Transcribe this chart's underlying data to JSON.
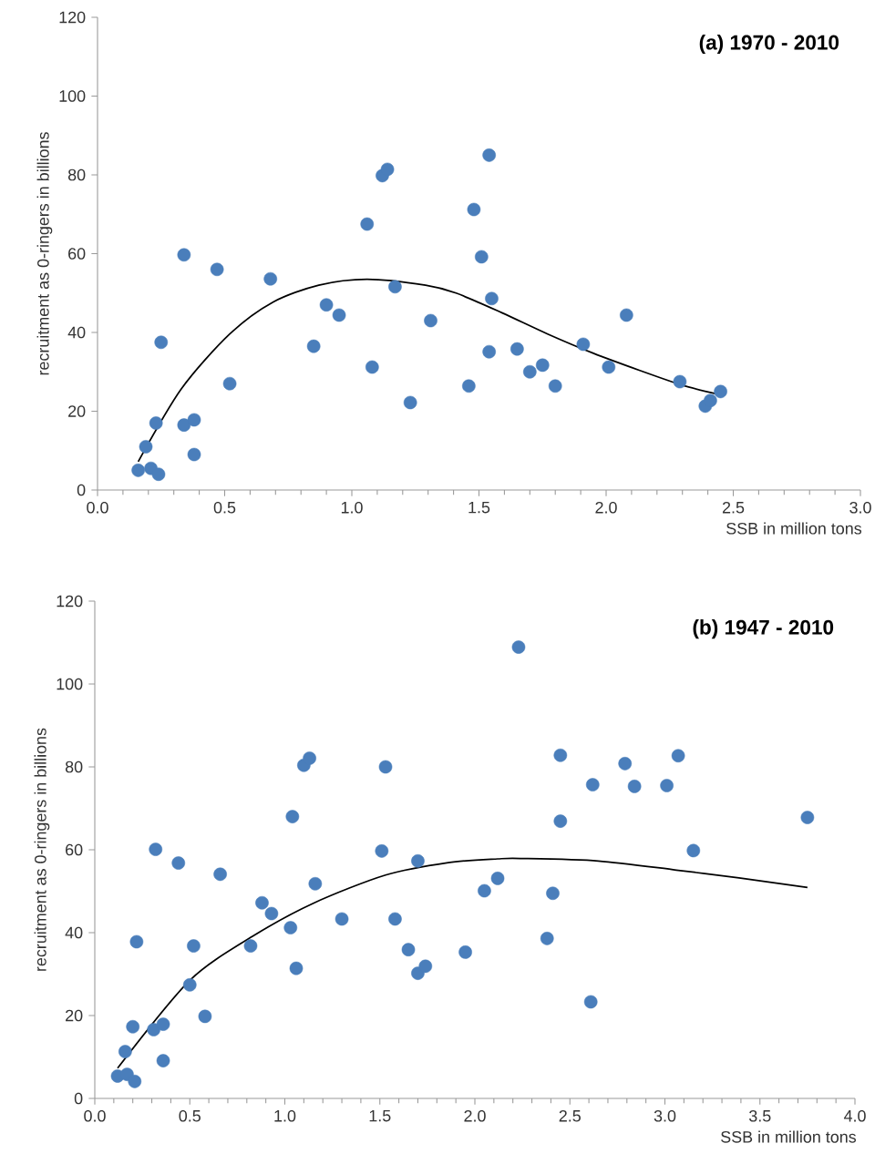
{
  "chart_data": [
    {
      "type": "scatter",
      "title": "(a) 1970 - 2010",
      "xlabel": "SSB in million tons",
      "ylabel": "recruitment as 0-ringers in billions",
      "xlim": [
        0,
        3.0
      ],
      "ylim": [
        0,
        120
      ],
      "xticks": [
        {
          "value": 0,
          "label": "0.0"
        },
        {
          "value": 0.5,
          "label": "0.5"
        },
        {
          "value": 1,
          "label": "1.0"
        },
        {
          "value": 1.5,
          "label": "1.5"
        },
        {
          "value": 2,
          "label": "2.0"
        },
        {
          "value": 2.5,
          "label": "2.5"
        },
        {
          "value": 3,
          "label": "3.0"
        }
      ],
      "yticks": [
        0,
        20,
        40,
        60,
        80,
        100,
        120
      ],
      "series": [
        {
          "color": "#4a7ebb",
          "marker": "circle",
          "x": [
            0.16,
            0.21,
            0.24,
            0.19,
            0.23,
            0.25,
            0.34,
            0.38,
            0.38,
            0.34,
            0.47,
            0.52,
            0.68,
            0.85,
            0.9,
            0.95,
            1.06,
            1.12,
            1.14,
            1.08,
            1.17,
            1.23,
            1.31,
            1.46,
            1.48,
            1.51,
            1.54,
            1.55,
            1.54,
            1.65,
            1.7,
            1.75,
            1.8,
            1.91,
            2.01,
            2.08,
            2.29,
            2.39,
            2.41,
            2.45
          ],
          "values": [
            5,
            5.5,
            4,
            11,
            17,
            37.5,
            16.5,
            17.8,
            9,
            59.7,
            56,
            27,
            53.6,
            36.5,
            47,
            44.4,
            67.5,
            79.8,
            81.4,
            31.2,
            51.6,
            22.2,
            43,
            26.4,
            71.2,
            59.2,
            85,
            48.6,
            35.1,
            35.8,
            30,
            31.7,
            26.4,
            37,
            31.2,
            44.4,
            27.5,
            21.3,
            22.7,
            25
          ]
        },
        {
          "type": "line",
          "marker": "none",
          "color": "#000000",
          "x": [
            0.16,
            0.33,
            0.52,
            0.69,
            0.87,
            1.06,
            1.29,
            1.41,
            1.59,
            1.77,
            1.95,
            2.13,
            2.3,
            2.44
          ],
          "values": [
            7.2,
            25.7,
            39.6,
            47.7,
            52,
            53.5,
            52,
            50,
            45,
            39.6,
            34.7,
            30.4,
            26.6,
            24.3
          ]
        }
      ]
    },
    {
      "type": "scatter",
      "title": "(b) 1947 - 2010",
      "xlabel": "SSB in million tons",
      "ylabel": "recruitment as 0-ringers in billions",
      "xlim": [
        0,
        4.0
      ],
      "ylim": [
        0,
        120
      ],
      "xticks": [
        {
          "value": 0,
          "label": "0.0"
        },
        {
          "value": 0.5,
          "label": "0.5"
        },
        {
          "value": 1,
          "label": "1.0"
        },
        {
          "value": 1.5,
          "label": "1.5"
        },
        {
          "value": 2,
          "label": "2.0"
        },
        {
          "value": 2.5,
          "label": "2.5"
        },
        {
          "value": 3,
          "label": "3.0"
        },
        {
          "value": 3.5,
          "label": "3.5"
        },
        {
          "value": 4,
          "label": "4.0"
        }
      ],
      "yticks": [
        0,
        20,
        40,
        60,
        80,
        100,
        120
      ],
      "series": [
        {
          "color": "#4a7ebb",
          "marker": "circle",
          "x": [
            0.12,
            0.17,
            0.21,
            0.16,
            0.2,
            0.22,
            0.31,
            0.36,
            0.36,
            0.32,
            0.44,
            0.5,
            0.52,
            0.58,
            0.66,
            0.82,
            0.88,
            0.93,
            1.03,
            1.04,
            1.06,
            1.1,
            1.13,
            1.16,
            1.3,
            1.51,
            1.53,
            1.58,
            1.65,
            1.7,
            1.7,
            1.74,
            1.95,
            2.05,
            2.12,
            2.23,
            2.41,
            2.38,
            2.45,
            2.45,
            2.62,
            2.61,
            2.79,
            2.84,
            3.01,
            3.07,
            3.15,
            3.75
          ],
          "values": [
            5.4,
            5.8,
            4.1,
            11.3,
            17.3,
            37.8,
            16.6,
            17.9,
            9.1,
            60.1,
            56.8,
            27.4,
            36.8,
            19.8,
            54.1,
            36.8,
            47.2,
            44.6,
            41.2,
            68,
            31.4,
            80.4,
            82.1,
            51.8,
            43.3,
            59.7,
            80,
            43.3,
            35.9,
            57.3,
            30.2,
            31.9,
            35.3,
            50.1,
            53.1,
            108.9,
            49.5,
            38.6,
            82.8,
            66.9,
            75.7,
            23.3,
            80.8,
            75.3,
            75.5,
            82.7,
            59.8,
            67.8
          ]
        },
        {
          "type": "line",
          "marker": "none",
          "color": "#000000",
          "x": [
            0.12,
            0.5,
            0.83,
            1.15,
            1.53,
            1.86,
            2.12,
            2.24,
            2.65,
            3.06,
            3.39,
            3.75
          ],
          "values": [
            7.3,
            28.5,
            39.1,
            47.1,
            53.9,
            56.9,
            57.8,
            57.9,
            57.3,
            55.1,
            53.2,
            50.9
          ]
        }
      ]
    }
  ]
}
